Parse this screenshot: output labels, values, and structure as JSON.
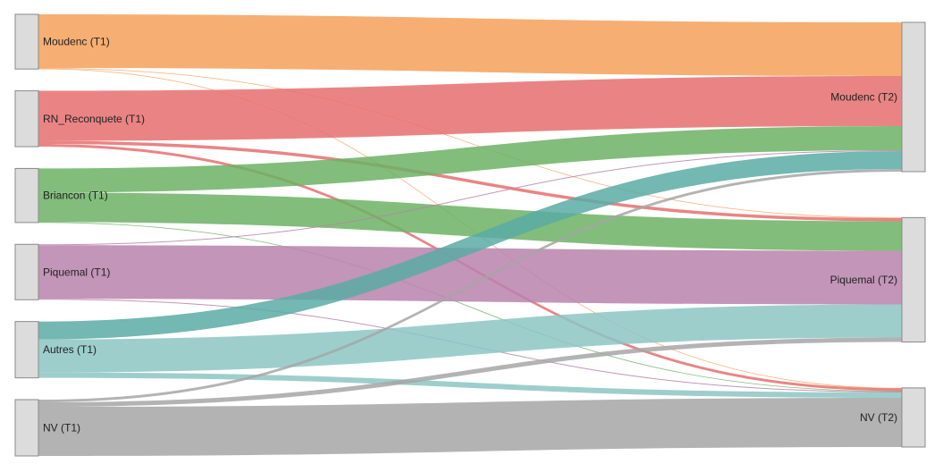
{
  "diagram": {
    "type": "sankey",
    "sources": [
      {
        "id": "moudenc_t1",
        "label": "Moudenc (T1)",
        "color": "#f5a05a"
      },
      {
        "id": "rn_t1",
        "label": "RN_Reconquete (T1)",
        "color": "#e66e6e"
      },
      {
        "id": "briancon_t1",
        "label": "Briancon (T1)",
        "color": "#6cb164"
      },
      {
        "id": "piquemal_t1",
        "label": "Piquemal (T1)",
        "color": "#b883ab"
      },
      {
        "id": "autres_t1",
        "label": "Autres (T1)",
        "color": "#7fbab7"
      },
      {
        "id": "nv_t1",
        "label": "NV (T1)",
        "color": "#a6a6a6"
      }
    ],
    "targets": [
      {
        "id": "moudenc_t2",
        "label": "Moudenc (T2)"
      },
      {
        "id": "piquemal_t2",
        "label": "Piquemal (T2)"
      },
      {
        "id": "nv_t2",
        "label": "NV (T2)"
      }
    ],
    "flows": [
      {
        "source": "moudenc_t1",
        "target": "moudenc_t2",
        "value": 60,
        "color": "#f5a05a"
      },
      {
        "source": "moudenc_t1",
        "target": "piquemal_t2",
        "value": 0.6,
        "color": "#f5a05a"
      },
      {
        "source": "moudenc_t1",
        "target": "nv_t2",
        "value": 0.6,
        "color": "#f5a05a"
      },
      {
        "source": "rn_t1",
        "target": "moudenc_t2",
        "value": 56,
        "color": "#e66e6e"
      },
      {
        "source": "rn_t1",
        "target": "piquemal_t2",
        "value": 3.5,
        "color": "#e66e6e"
      },
      {
        "source": "rn_t1",
        "target": "nv_t2",
        "value": 3,
        "color": "#e66e6e"
      },
      {
        "source": "briancon_t1",
        "target": "moudenc_t2",
        "value": 27,
        "color": "#6cb164"
      },
      {
        "source": "briancon_t1",
        "target": "piquemal_t2",
        "value": 33,
        "color": "#6cb164"
      },
      {
        "source": "briancon_t1",
        "target": "nv_t2",
        "value": 0.5,
        "color": "#6cb164"
      },
      {
        "source": "piquemal_t1",
        "target": "moudenc_t2",
        "value": 1,
        "color": "#b883ab"
      },
      {
        "source": "piquemal_t1",
        "target": "piquemal_t2",
        "value": 60,
        "color": "#b883ab"
      },
      {
        "source": "piquemal_t1",
        "target": "nv_t2",
        "value": 1,
        "color": "#b883ab"
      },
      {
        "source": "autres_t1",
        "target": "moudenc_t2",
        "value": 20,
        "color": "#5aaca5"
      },
      {
        "source": "autres_t1",
        "target": "piquemal_t2",
        "value": 37,
        "color": "#8cc5c3"
      },
      {
        "source": "autres_t1",
        "target": "nv_t2",
        "value": 6,
        "color": "#8cc5c3"
      },
      {
        "source": "nv_t1",
        "target": "moudenc_t2",
        "value": 3,
        "color": "#a6a6a6"
      },
      {
        "source": "nv_t1",
        "target": "piquemal_t2",
        "value": 5,
        "color": "#a6a6a6"
      },
      {
        "source": "nv_t1",
        "target": "nv_t2",
        "value": 55,
        "color": "#a6a6a6"
      }
    ],
    "node_fill": "#dcdcdc",
    "node_stroke": "#8a8a8a"
  }
}
